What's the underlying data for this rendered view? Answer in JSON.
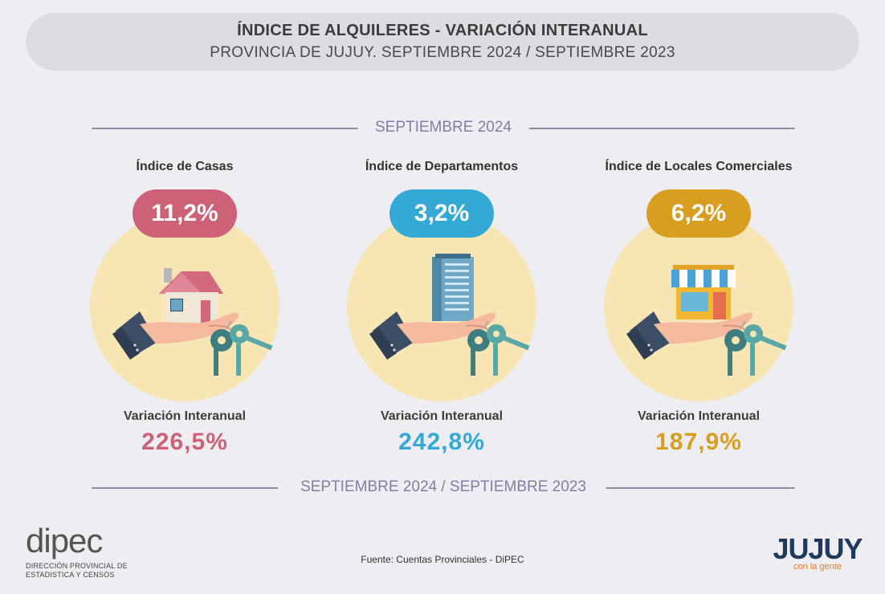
{
  "header": {
    "title": "ÍNDICE DE ALQUILERES - VARIACIÓN INTERANUAL",
    "subtitle": "PROVINCIA DE JUJUY. SEPTIEMBRE 2024 / SEPTIEMBRE 2023"
  },
  "section_top": "SEPTIEMBRE 2024",
  "section_bottom": "SEPTIEMBRE 2024 / SEPTIEMBRE 2023",
  "indices": [
    {
      "title": "Índice de Casas",
      "value": "11,2%",
      "variation_label": "Variación Interanual",
      "variation": "226,5%",
      "color": "#cd6178",
      "icon": "house-icon"
    },
    {
      "title": "Índice de Departamentos",
      "value": "3,2%",
      "variation_label": "Variación Interanual",
      "variation": "242,8%",
      "color": "#35a9d6",
      "icon": "building-icon"
    },
    {
      "title": "Índice de Locales Comerciales",
      "value": "6,2%",
      "variation_label": "Variación Interanual",
      "variation": "187,9%",
      "color": "#d89e1f",
      "icon": "store-icon"
    }
  ],
  "footer": {
    "source": "Fuente: Cuentas Provinciales - DiPEC",
    "dipec_logo": "dipec",
    "dipec_sub_line1": "DIRECCIÓN PROVINCIAL DE",
    "dipec_sub_line2": "ESTADISTICA Y CENSOS",
    "jujuy_logo": "JUJUY",
    "jujuy_sub": "con la gente"
  },
  "colors": {
    "background": "#ededf2",
    "header_bg": "#dcdce2",
    "circle": "#f7e6b3",
    "divider": "#8c8ca6"
  }
}
